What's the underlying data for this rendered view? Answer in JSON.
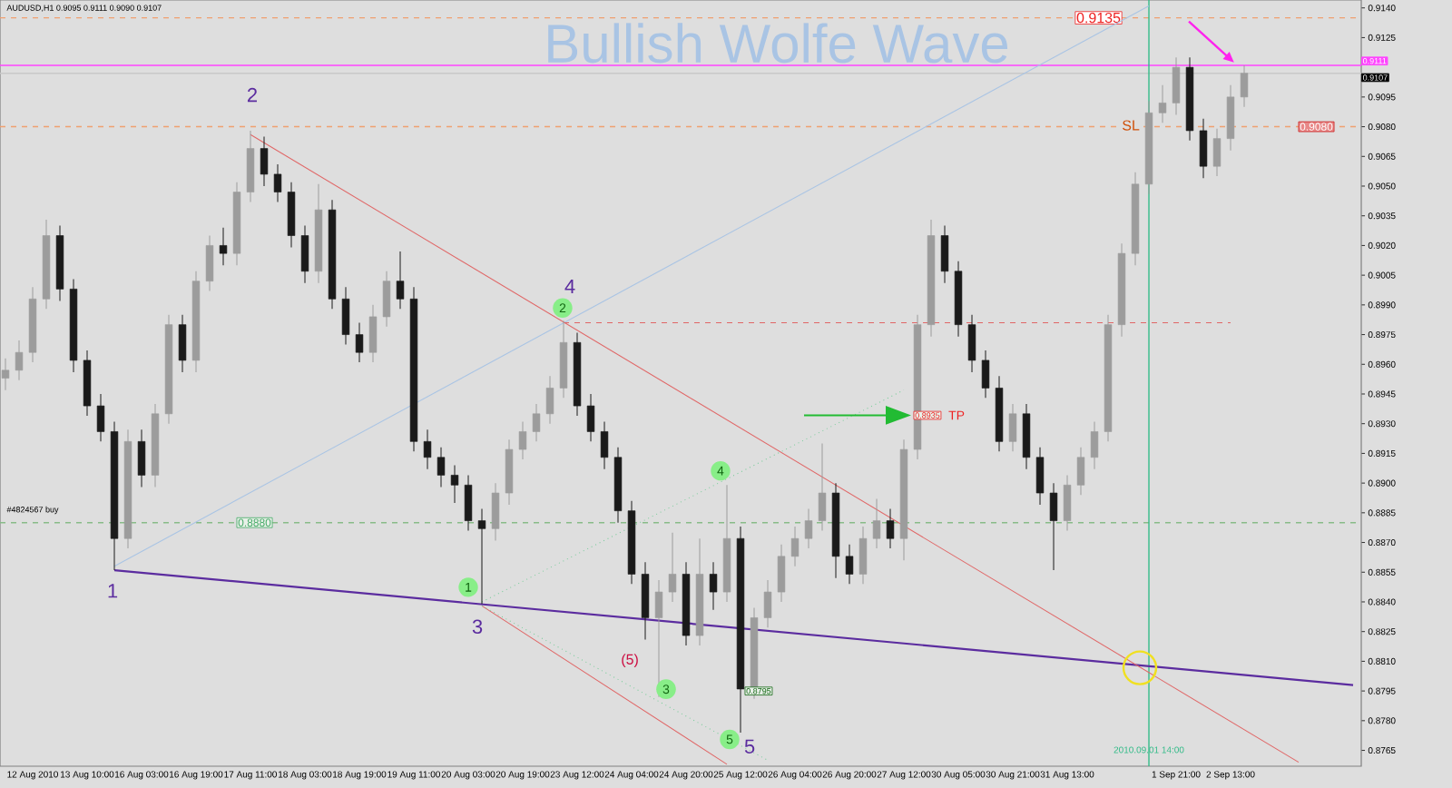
{
  "chart_data": {
    "type": "candlestick",
    "title": "Bullish Wolfe Wave",
    "subtitle": "AUDUSD,H1 0.9095 0.9111 0.9090 0.9107",
    "categories": [
      null,
      null,
      "12 Aug 2010",
      null,
      null,
      null,
      "13 Aug 10:00",
      null,
      null,
      null,
      "16 Aug 03:00",
      null,
      null,
      null,
      "16 Aug 19:00",
      null,
      null,
      null,
      "17 Aug 11:00",
      null,
      null,
      null,
      "18 Aug 03:00",
      null,
      null,
      null,
      "18 Aug 19:00",
      null,
      null,
      null,
      "19 Aug 11:00",
      null,
      null,
      null,
      "20 Aug 03:00",
      null,
      null,
      null,
      "20 Aug 19:00",
      null,
      null,
      null,
      "23 Aug 12:00",
      null,
      null,
      null,
      "24 Aug 04:00",
      null,
      null,
      null,
      "24 Aug 20:00",
      null,
      null,
      null,
      "25 Aug 12:00",
      null,
      null,
      null,
      "26 Aug 04:00",
      null,
      null,
      null,
      "26 Aug 20:00",
      null,
      null,
      null,
      "27 Aug 12:00",
      null,
      null,
      null,
      "30 Aug 05:00",
      null,
      null,
      null,
      "30 Aug 21:00",
      null,
      null,
      null,
      "31 Aug 13:00",
      null,
      null,
      null,
      null,
      null,
      "2010.09.01 14:00",
      null,
      "1 Sep 21:00",
      null,
      null,
      null,
      "2 Sep 13:00",
      null,
      null,
      null,
      null,
      null,
      null,
      null,
      null,
      null
    ],
    "ohlc": [
      [
        0.8953,
        0.8963,
        0.8947,
        0.8957
      ],
      [
        0.8957,
        0.8972,
        0.8952,
        0.8966
      ],
      [
        0.8966,
        0.8999,
        0.8961,
        0.8993
      ],
      [
        0.8993,
        0.9033,
        0.8988,
        0.9025
      ],
      [
        0.9025,
        0.903,
        0.8992,
        0.8998
      ],
      [
        0.8998,
        0.9003,
        0.8956,
        0.8962
      ],
      [
        0.8962,
        0.8967,
        0.8934,
        0.8939
      ],
      [
        0.8939,
        0.8945,
        0.8921,
        0.8926
      ],
      [
        0.8926,
        0.8931,
        0.8856,
        0.8872
      ],
      [
        0.8872,
        0.8927,
        0.8867,
        0.8921
      ],
      [
        0.8921,
        0.8927,
        0.8898,
        0.8904
      ],
      [
        0.8904,
        0.894,
        0.8898,
        0.8935
      ],
      [
        0.8935,
        0.8985,
        0.893,
        0.898
      ],
      [
        0.898,
        0.8985,
        0.8956,
        0.8962
      ],
      [
        0.8962,
        0.9007,
        0.8956,
        0.9002
      ],
      [
        0.9002,
        0.9025,
        0.8997,
        0.902
      ],
      [
        0.902,
        0.9029,
        0.901,
        0.9016
      ],
      [
        0.9016,
        0.9052,
        0.901,
        0.9047
      ],
      [
        0.9047,
        0.9078,
        0.9042,
        0.9069
      ],
      [
        0.9069,
        0.9075,
        0.905,
        0.9056
      ],
      [
        0.9056,
        0.9061,
        0.9042,
        0.9047
      ],
      [
        0.9047,
        0.9052,
        0.9019,
        0.9025
      ],
      [
        0.9025,
        0.903,
        0.9001,
        0.9007
      ],
      [
        0.9007,
        0.9051,
        0.9001,
        0.9038
      ],
      [
        0.9038,
        0.9043,
        0.8988,
        0.8993
      ],
      [
        0.8993,
        0.8999,
        0.897,
        0.8975
      ],
      [
        0.8975,
        0.8981,
        0.8961,
        0.8966
      ],
      [
        0.8966,
        0.899,
        0.8961,
        0.8984
      ],
      [
        0.8984,
        0.9007,
        0.8979,
        0.9002
      ],
      [
        0.9002,
        0.9017,
        0.8988,
        0.8993
      ],
      [
        0.8993,
        0.8999,
        0.8916,
        0.8921
      ],
      [
        0.8921,
        0.8927,
        0.8907,
        0.8913
      ],
      [
        0.8913,
        0.8918,
        0.8898,
        0.8904
      ],
      [
        0.8904,
        0.8909,
        0.889,
        0.8899
      ],
      [
        0.8899,
        0.8904,
        0.8876,
        0.8881
      ],
      [
        0.8881,
        0.8887,
        0.8839,
        0.8877
      ],
      [
        0.8877,
        0.89,
        0.8871,
        0.8895
      ],
      [
        0.8895,
        0.8922,
        0.8889,
        0.8917
      ],
      [
        0.8917,
        0.8931,
        0.8912,
        0.8926
      ],
      [
        0.8926,
        0.894,
        0.8921,
        0.8935
      ],
      [
        0.8935,
        0.8954,
        0.893,
        0.8948
      ],
      [
        0.8948,
        0.8982,
        0.8943,
        0.8971
      ],
      [
        0.8971,
        0.8976,
        0.8934,
        0.8939
      ],
      [
        0.8939,
        0.8945,
        0.8921,
        0.8926
      ],
      [
        0.8926,
        0.8931,
        0.8907,
        0.8913
      ],
      [
        0.8913,
        0.8918,
        0.888,
        0.8886
      ],
      [
        0.8886,
        0.8891,
        0.8849,
        0.8854
      ],
      [
        0.8854,
        0.886,
        0.8821,
        0.8832
      ],
      [
        0.8832,
        0.8851,
        0.8792,
        0.8845
      ],
      [
        0.8845,
        0.8875,
        0.884,
        0.8854
      ],
      [
        0.8854,
        0.886,
        0.8818,
        0.8823
      ],
      [
        0.8823,
        0.8872,
        0.8818,
        0.8854
      ],
      [
        0.8854,
        0.886,
        0.8836,
        0.8845
      ],
      [
        0.8845,
        0.8899,
        0.884,
        0.8872
      ],
      [
        0.8872,
        0.8878,
        0.8774,
        0.8796
      ],
      [
        0.8796,
        0.8837,
        0.8791,
        0.8832
      ],
      [
        0.8832,
        0.8851,
        0.8827,
        0.8845
      ],
      [
        0.8845,
        0.8869,
        0.884,
        0.8863
      ],
      [
        0.8863,
        0.8878,
        0.8858,
        0.8872
      ],
      [
        0.8872,
        0.8887,
        0.8867,
        0.8881
      ],
      [
        0.8881,
        0.892,
        0.8876,
        0.8895
      ],
      [
        0.8895,
        0.89,
        0.8852,
        0.8863
      ],
      [
        0.8863,
        0.8869,
        0.8849,
        0.8854
      ],
      [
        0.8854,
        0.8878,
        0.8849,
        0.8872
      ],
      [
        0.8872,
        0.8892,
        0.8867,
        0.8881
      ],
      [
        0.8881,
        0.8887,
        0.8867,
        0.8872
      ],
      [
        0.8872,
        0.8922,
        0.8861,
        0.8917
      ],
      [
        0.8917,
        0.8985,
        0.8912,
        0.898
      ],
      [
        0.898,
        0.9033,
        0.8974,
        0.9025
      ],
      [
        0.9025,
        0.903,
        0.9001,
        0.9007
      ],
      [
        0.9007,
        0.9012,
        0.8974,
        0.898
      ],
      [
        0.898,
        0.8985,
        0.8956,
        0.8962
      ],
      [
        0.8962,
        0.8967,
        0.8943,
        0.8948
      ],
      [
        0.8948,
        0.8954,
        0.8916,
        0.8921
      ],
      [
        0.8921,
        0.894,
        0.8916,
        0.8935
      ],
      [
        0.8935,
        0.894,
        0.8907,
        0.8913
      ],
      [
        0.8913,
        0.8918,
        0.8889,
        0.8895
      ],
      [
        0.8895,
        0.89,
        0.8856,
        0.8881
      ],
      [
        0.8881,
        0.8904,
        0.8876,
        0.8899
      ],
      [
        0.8899,
        0.8918,
        0.8894,
        0.8913
      ],
      [
        0.8913,
        0.8931,
        0.8907,
        0.8926
      ],
      [
        0.8926,
        0.8985,
        0.8921,
        0.898
      ],
      [
        0.898,
        0.9021,
        0.8974,
        0.9016
      ],
      [
        0.9016,
        0.9057,
        0.901,
        0.9051
      ],
      [
        0.9051,
        0.9093,
        0.9046,
        0.9087
      ],
      [
        0.9087,
        0.9101,
        0.9082,
        0.9092
      ],
      [
        0.9092,
        0.9115,
        0.9086,
        0.911
      ],
      [
        0.911,
        0.9115,
        0.9073,
        0.9078
      ],
      [
        0.9078,
        0.9084,
        0.9054,
        0.906
      ],
      [
        0.906,
        0.9079,
        0.9055,
        0.9074
      ],
      [
        0.9074,
        0.9101,
        0.9068,
        0.9095
      ],
      [
        0.9095,
        0.9111,
        0.909,
        0.9107
      ],
      null,
      null,
      null,
      null,
      null,
      null,
      null,
      null
    ],
    "series": [
      {
        "type": "line",
        "color": "#5b2c9f",
        "values": [
          null,
          null,
          null,
          null,
          null,
          null,
          null,
          null,
          0.8856,
          null,
          null,
          null,
          null,
          null,
          null,
          null,
          null,
          null,
          null,
          null,
          null,
          null,
          null,
          null,
          null,
          null,
          null,
          null,
          null,
          null,
          null,
          null,
          null,
          null,
          null,
          null,
          null,
          null,
          null,
          null,
          null,
          null,
          null,
          null,
          null,
          null,
          null,
          null,
          null,
          null,
          null,
          null,
          null,
          null,
          null,
          null,
          null,
          null,
          null,
          null,
          null,
          null,
          null,
          null,
          null,
          null,
          null,
          null,
          null,
          null,
          null,
          null,
          null,
          null,
          null,
          null,
          null,
          null,
          null,
          null,
          null,
          null,
          null,
          null,
          null,
          null,
          null,
          null,
          null,
          null,
          null,
          null,
          null,
          null,
          null,
          null,
          null,
          null,
          null,
          0.8798
        ]
      },
      {
        "type": "line",
        "color": "#e06666",
        "values": [
          null,
          null,
          null,
          null,
          null,
          null,
          null,
          null,
          null,
          null,
          null,
          null,
          null,
          null,
          null,
          null,
          null,
          null,
          0.9076,
          null,
          null,
          null,
          null,
          null,
          null,
          null,
          null,
          null,
          null,
          null,
          null,
          null,
          null,
          null,
          null,
          null,
          null,
          null,
          null,
          null,
          null,
          null,
          null,
          null,
          null,
          null,
          null,
          null,
          null,
          null,
          null,
          null,
          null,
          null,
          null,
          null,
          null,
          null,
          null,
          null,
          null,
          null,
          null,
          null,
          null,
          null,
          null,
          null,
          null,
          null,
          null,
          null,
          null,
          null,
          null,
          null,
          null,
          null,
          null,
          null,
          null,
          null,
          null,
          null,
          null,
          null,
          null,
          null,
          null,
          null,
          null,
          null,
          null,
          null,
          null,
          0.8759,
          null,
          null,
          null,
          null
        ]
      },
      {
        "type": "line",
        "color": "#e06666",
        "values": [
          null,
          null,
          null,
          null,
          null,
          null,
          null,
          null,
          null,
          null,
          null,
          null,
          null,
          null,
          null,
          null,
          null,
          null,
          null,
          null,
          null,
          null,
          null,
          null,
          null,
          null,
          null,
          null,
          null,
          null,
          null,
          null,
          null,
          null,
          null,
          0.8838,
          null,
          null,
          null,
          null,
          null,
          null,
          null,
          null,
          null,
          null,
          null,
          null,
          null,
          null,
          null,
          null,
          null,
          0.8758,
          null,
          null,
          null,
          null,
          null,
          null,
          null,
          null,
          null,
          null,
          null,
          null,
          null,
          null,
          null,
          null,
          null,
          null,
          null,
          null,
          null,
          null,
          null,
          null,
          null,
          null,
          null,
          null,
          null,
          null,
          null,
          null,
          null,
          null,
          null,
          null,
          null,
          null,
          null,
          null,
          null,
          null,
          null,
          null,
          null,
          null
        ]
      },
      {
        "type": "line",
        "color": "#a9c4e4",
        "values": [
          null,
          null,
          null,
          null,
          null,
          null,
          null,
          null,
          0.8858,
          null,
          null,
          null,
          null,
          null,
          null,
          null,
          null,
          null,
          null,
          null,
          null,
          null,
          null,
          null,
          null,
          null,
          null,
          null,
          null,
          null,
          null,
          null,
          null,
          null,
          null,
          null,
          null,
          null,
          null,
          null,
          null,
          null,
          null,
          null,
          null,
          null,
          null,
          null,
          null,
          null,
          null,
          null,
          null,
          null,
          null,
          null,
          null,
          null,
          null,
          null,
          null,
          null,
          null,
          null,
          null,
          null,
          null,
          null,
          null,
          null,
          null,
          null,
          null,
          null,
          null,
          null,
          null,
          null,
          null,
          null,
          null,
          null,
          null,
          null,
          0.9141,
          null,
          null,
          null,
          null,
          null,
          null,
          null,
          null,
          null,
          null,
          null,
          null,
          null,
          null,
          null
        ]
      },
      {
        "type": "line",
        "color": "#77cc99",
        "line_style": "dotted",
        "values": [
          null,
          null,
          null,
          null,
          null,
          null,
          null,
          null,
          null,
          null,
          null,
          null,
          null,
          null,
          null,
          null,
          null,
          null,
          null,
          null,
          null,
          null,
          null,
          null,
          null,
          null,
          null,
          null,
          null,
          null,
          null,
          null,
          null,
          null,
          null,
          0.884,
          null,
          null,
          null,
          null,
          null,
          null,
          null,
          null,
          null,
          null,
          null,
          null,
          null,
          null,
          null,
          null,
          null,
          null,
          null,
          null,
          null,
          null,
          null,
          null,
          null,
          null,
          null,
          null,
          null,
          null,
          0.8947,
          null,
          null,
          null,
          null,
          null,
          null,
          null,
          null,
          null,
          null,
          null,
          null,
          null,
          null,
          null,
          null,
          null,
          null,
          null,
          null,
          null,
          null,
          null,
          null,
          null,
          null,
          null,
          null,
          null,
          null,
          null,
          null,
          null
        ]
      },
      {
        "type": "line",
        "color": "#77cc99",
        "line_style": "dotted",
        "values": [
          null,
          null,
          null,
          null,
          null,
          null,
          null,
          null,
          null,
          null,
          null,
          null,
          null,
          null,
          null,
          null,
          null,
          null,
          null,
          null,
          null,
          null,
          null,
          null,
          null,
          null,
          null,
          null,
          null,
          null,
          null,
          null,
          null,
          null,
          null,
          0.8838,
          null,
          null,
          null,
          null,
          null,
          null,
          null,
          null,
          null,
          null,
          null,
          null,
          null,
          null,
          null,
          null,
          null,
          null,
          null,
          null,
          0.876,
          null,
          null,
          null,
          null,
          null,
          null,
          null,
          null,
          null,
          null,
          null,
          null,
          null,
          null,
          null,
          null,
          null,
          null,
          null,
          null,
          null,
          null,
          null,
          null,
          null,
          null,
          null,
          null,
          null,
          null,
          null,
          null,
          null,
          null,
          null,
          null,
          null,
          null,
          null,
          null,
          null,
          null,
          null
        ]
      },
      {
        "type": "line",
        "color": "#e06666",
        "line_style": "dashed",
        "values": [
          null,
          null,
          null,
          null,
          null,
          null,
          null,
          null,
          null,
          null,
          null,
          null,
          null,
          null,
          null,
          null,
          null,
          null,
          null,
          null,
          null,
          null,
          null,
          null,
          null,
          null,
          null,
          null,
          null,
          null,
          null,
          null,
          null,
          null,
          null,
          null,
          null,
          null,
          null,
          null,
          null,
          0.8981,
          null,
          null,
          null,
          null,
          null,
          null,
          null,
          null,
          null,
          null,
          null,
          null,
          null,
          null,
          null,
          null,
          null,
          null,
          null,
          null,
          null,
          null,
          null,
          null,
          null,
          null,
          null,
          null,
          null,
          null,
          null,
          null,
          null,
          null,
          null,
          null,
          null,
          null,
          null,
          null,
          null,
          null,
          null,
          null,
          null,
          null,
          null,
          null,
          0.8981,
          null,
          null,
          null,
          null,
          null,
          null,
          null,
          null,
          null
        ]
      }
    ],
    "ref_lines": [
      {
        "axis": "y",
        "value": 0.9135,
        "label": "0.9135",
        "color": "#f0a070",
        "line_style": "dashed"
      },
      {
        "axis": "y",
        "value": 0.9111,
        "label": "0.9111",
        "color": "#ff44ff"
      },
      {
        "axis": "y",
        "value": 0.9107,
        "label": "0.9107",
        "color": "#c8c8c8"
      },
      {
        "axis": "y",
        "value": 0.908,
        "label": "0.9080",
        "color": "#f0a070",
        "line_style": "dashed"
      },
      {
        "axis": "y",
        "value": 0.888,
        "label": "0.8880",
        "color": "#88bb88",
        "line_style": "dashed"
      },
      {
        "axis": "x",
        "value": "2010.09.01 14:00",
        "color": "#33bb88"
      }
    ],
    "annotations": [
      "1",
      "2",
      "3",
      "4",
      "5",
      "(5)",
      "1",
      "2",
      "3",
      "4",
      "5",
      "SL",
      "#4824567 buy",
      "0.8795",
      "0.8935",
      "TP"
    ],
    "ylim": [
      0.8757,
      0.9144
    ],
    "yticks": [
      {
        "value": 0.8765,
        "label": "0.8765"
      },
      {
        "value": 0.878,
        "label": "0.8780"
      },
      {
        "value": 0.8795,
        "label": "0.8795"
      },
      {
        "value": 0.881,
        "label": "0.8810"
      },
      {
        "value": 0.8825,
        "label": "0.8825"
      },
      {
        "value": 0.884,
        "label": "0.8840"
      },
      {
        "value": 0.8855,
        "label": "0.8855"
      },
      {
        "value": 0.887,
        "label": "0.8870"
      },
      {
        "value": 0.8885,
        "label": "0.8885"
      },
      {
        "value": 0.89,
        "label": "0.8900"
      },
      {
        "value": 0.8915,
        "label": "0.8915"
      },
      {
        "value": 0.893,
        "label": "0.8930"
      },
      {
        "value": 0.8945,
        "label": "0.8945"
      },
      {
        "value": 0.896,
        "label": "0.8960"
      },
      {
        "value": 0.8975,
        "label": "0.8975"
      },
      {
        "value": 0.899,
        "label": "0.8990"
      },
      {
        "value": 0.9005,
        "label": "0.9005"
      },
      {
        "value": 0.902,
        "label": "0.9020"
      },
      {
        "value": 0.9035,
        "label": "0.9035"
      },
      {
        "value": 0.905,
        "label": "0.9050"
      },
      {
        "value": 0.9065,
        "label": "0.9065"
      },
      {
        "value": 0.908,
        "label": "0.9080"
      },
      {
        "value": 0.9095,
        "label": "0.9095"
      },
      {
        "value": 0.9125,
        "label": "0.9125"
      },
      {
        "value": 0.914,
        "label": "0.9140"
      }
    ]
  }
}
